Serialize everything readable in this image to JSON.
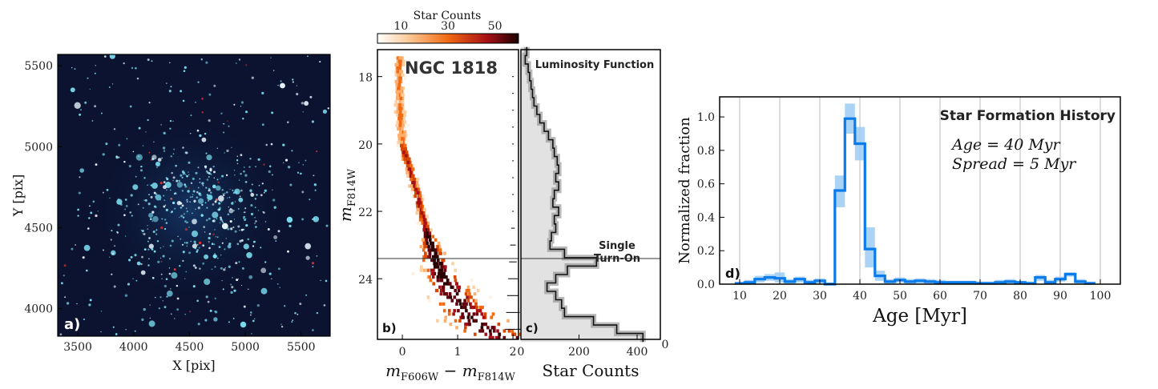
{
  "panel_a": {
    "label": "a)",
    "xlabel": "X [pix]",
    "ylabel": "Y [pix]",
    "xticks": [
      3500,
      4000,
      4500,
      5000,
      5500
    ],
    "yticks": [
      4000,
      4500,
      5000,
      5500
    ],
    "xlim": [
      3320,
      5760
    ],
    "ylim": [
      3830,
      5570
    ],
    "colors": {
      "background": "#0b1330",
      "star": "#7fe3f5",
      "red_star": "#e8322a"
    }
  },
  "colorbar": {
    "title": "Star Counts",
    "ticks": [
      10,
      30,
      50
    ],
    "range": [
      0,
      60
    ],
    "colors": [
      "#ffffff",
      "#fdd0a2",
      "#f16913",
      "#a50f15",
      "#1a0000"
    ]
  },
  "panel_b": {
    "label": "b)",
    "title": "NGC 1818",
    "xlabel": "m_F606W − m_F814W",
    "ylabel": "m_F814W",
    "xticks": [
      "0",
      "1",
      "2"
    ],
    "yticks": [
      "18",
      "20",
      "22",
      "24"
    ],
    "xlim": [
      -0.45,
      2.1
    ],
    "ylim": [
      25.8,
      17.2
    ],
    "turn_on_magnitude": 23.4
  },
  "panel_c": {
    "label": "c)",
    "title": "Luminosity Function",
    "annotation": [
      "Single",
      "Turn-On"
    ],
    "xlabel": "Star Counts",
    "xticks": [
      "0",
      "200",
      "400"
    ],
    "corner_tick": "0",
    "xlim": [
      0,
      480
    ]
  },
  "panel_d": {
    "label": "d)",
    "title": "Star Formation History",
    "age_text": "Age = 40 Myr",
    "spread_text": "Spread = 5 Myr",
    "xlabel": "Age [Myr]",
    "ylabel": "Normalized fraction",
    "xticks": [
      "10",
      "20",
      "30",
      "40",
      "50",
      "60",
      "70",
      "80",
      "90",
      "100"
    ],
    "yticks": [
      "0.0",
      "0.2",
      "0.4",
      "0.6",
      "0.8",
      "1.0"
    ],
    "xlim": [
      5,
      105
    ],
    "ylim": [
      0,
      1.12
    ],
    "colors": {
      "line": "#0a7bea",
      "band": "#9ccbf5",
      "grid": "#bbbbbb"
    }
  },
  "chart_data": [
    {
      "type": "scatter",
      "panel": "a",
      "description_units": "pixel image coordinates",
      "x_range": [
        3320,
        5760
      ],
      "y_range": [
        3830,
        5570
      ],
      "cluster_center": [
        4560,
        4640
      ]
    },
    {
      "type": "heatmap",
      "panel": "b",
      "xlabel": "m_F606W − m_F814W",
      "ylabel": "m_F814W",
      "ridge": [
        [
          -0.05,
          17.4
        ],
        [
          -0.05,
          18.5
        ],
        [
          -0.03,
          19.5
        ],
        [
          0.02,
          20.1
        ],
        [
          0.12,
          20.6
        ],
        [
          0.25,
          21.3
        ],
        [
          0.35,
          22.0
        ],
        [
          0.45,
          22.6
        ],
        [
          0.55,
          23.2
        ],
        [
          0.65,
          23.6
        ],
        [
          0.8,
          24.1
        ],
        [
          1.0,
          24.6
        ],
        [
          1.25,
          25.1
        ],
        [
          1.55,
          25.5
        ],
        [
          1.9,
          25.7
        ]
      ]
    },
    {
      "type": "line",
      "panel": "c",
      "xlabel": "Star Counts",
      "magnitudes": [
        17.25,
        17.5,
        17.75,
        18.0,
        18.25,
        18.5,
        18.75,
        19.0,
        19.25,
        19.5,
        19.75,
        20.0,
        20.25,
        20.5,
        20.75,
        21.0,
        21.25,
        21.5,
        21.75,
        22.0,
        22.25,
        22.5,
        22.75,
        23.0,
        23.25,
        23.5,
        23.75,
        24.0,
        24.25,
        24.5,
        24.75,
        25.0,
        25.25,
        25.5,
        25.75
      ],
      "counts": [
        20,
        15,
        25,
        30,
        35,
        40,
        45,
        55,
        65,
        80,
        95,
        110,
        115,
        125,
        130,
        120,
        130,
        115,
        110,
        130,
        115,
        120,
        105,
        100,
        150,
        260,
        160,
        120,
        90,
        120,
        140,
        150,
        250,
        330,
        420
      ]
    },
    {
      "type": "line",
      "panel": "d",
      "title": "Star Formation History",
      "xlabel": "Age [Myr]",
      "ylabel": "Normalized fraction",
      "x": [
        10,
        12.5,
        15,
        17.5,
        20,
        22.5,
        25,
        27.5,
        30,
        32.5,
        35,
        37.5,
        40,
        42.5,
        45,
        47.5,
        50,
        52.5,
        55,
        57.5,
        60,
        62.5,
        65,
        67.5,
        70,
        72.5,
        75,
        77.5,
        80,
        82.5,
        85,
        87.5,
        90,
        92.5,
        95,
        97.5
      ],
      "y": [
        0.005,
        0.01,
        0.03,
        0.04,
        0.035,
        0.015,
        0.03,
        0.01,
        0.02,
        0.0,
        0.56,
        0.99,
        0.84,
        0.21,
        0.05,
        0.015,
        0.025,
        0.015,
        0.02,
        0.015,
        0.01,
        0.01,
        0.01,
        0.01,
        0.005,
        0.005,
        0.01,
        0.015,
        0.01,
        0.005,
        0.04,
        0.01,
        0.03,
        0.06,
        0.015,
        0.005
      ],
      "band_upper": [
        0.01,
        0.025,
        0.05,
        0.06,
        0.07,
        0.03,
        0.045,
        0.025,
        0.035,
        0.01,
        0.65,
        1.08,
        0.94,
        0.34,
        0.08,
        0.03,
        0.04,
        0.03,
        0.035,
        0.03,
        0.025,
        0.02,
        0.02,
        0.02,
        0.015,
        0.015,
        0.025,
        0.03,
        0.02,
        0.015,
        0.055,
        0.025,
        0.045,
        0.07,
        0.03,
        0.015
      ],
      "band_lower": [
        0.0,
        0.0,
        0.01,
        0.02,
        0.01,
        0.0,
        0.01,
        0.0,
        0.005,
        0.0,
        0.46,
        0.9,
        0.74,
        0.1,
        0.02,
        0.0,
        0.01,
        0.0,
        0.005,
        0.0,
        0.0,
        0.0,
        0.0,
        0.0,
        0.0,
        0.0,
        0.0,
        0.0,
        0.0,
        0.0,
        0.02,
        0.0,
        0.015,
        0.045,
        0.0,
        0.0
      ],
      "xlim": [
        5,
        105
      ],
      "ylim": [
        0,
        1.12
      ],
      "grid": "vertical lines at x ticks"
    }
  ]
}
